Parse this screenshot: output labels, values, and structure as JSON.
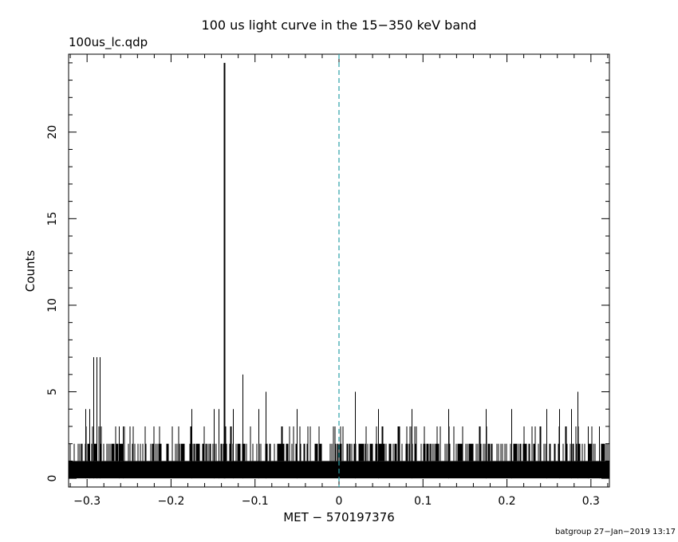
{
  "chart_data": {
    "type": "bar",
    "title": "100 us light curve in the 15−350 keV band",
    "file_label": "100us_lc.qdp",
    "xlabel": "MET − 570197376",
    "ylabel": "Counts",
    "footer": "batgroup 27−Jan−2019 13:17",
    "xlim": [
      -0.322,
      0.322
    ],
    "ylim": [
      -0.5,
      24.5
    ],
    "x_ticks": [
      -0.3,
      -0.2,
      -0.1,
      0,
      0.1,
      0.2,
      0.3
    ],
    "x_tick_labels": [
      "−0.3",
      "−0.2",
      "−0.1",
      "0",
      "0.1",
      "0.2",
      "0.3"
    ],
    "y_ticks": [
      0,
      5,
      10,
      15,
      20
    ],
    "y_tick_labels": [
      "0",
      "5",
      "10",
      "15",
      "20"
    ],
    "bin_width": 0.0001,
    "baseline_range": [
      0,
      1
    ],
    "reference_line": {
      "x": 0,
      "style": "dashed",
      "color": "#2aa0a8"
    },
    "series": [
      {
        "color": "#000000",
        "peaks": [
          {
            "x": -0.137,
            "y": 24
          },
          {
            "x": -0.115,
            "y": 6
          },
          {
            "x": -0.293,
            "y": 7
          },
          {
            "x": -0.289,
            "y": 7
          },
          {
            "x": -0.285,
            "y": 7
          },
          {
            "x": -0.302,
            "y": 4
          },
          {
            "x": -0.297,
            "y": 4
          },
          {
            "x": -0.087,
            "y": 5
          },
          {
            "x": 0.019,
            "y": 5
          },
          {
            "x": 0.284,
            "y": 5
          },
          {
            "x": -0.262,
            "y": 3
          },
          {
            "x": -0.257,
            "y": 3
          },
          {
            "x": -0.143,
            "y": 4
          },
          {
            "x": -0.149,
            "y": 4
          },
          {
            "x": -0.126,
            "y": 4
          },
          {
            "x": -0.176,
            "y": 4
          },
          {
            "x": -0.096,
            "y": 4
          },
          {
            "x": -0.05,
            "y": 4
          },
          {
            "x": 0.047,
            "y": 4
          },
          {
            "x": 0.086,
            "y": 4
          },
          {
            "x": 0.13,
            "y": 4
          },
          {
            "x": 0.175,
            "y": 4
          },
          {
            "x": 0.205,
            "y": 4
          },
          {
            "x": 0.247,
            "y": 4
          },
          {
            "x": 0.262,
            "y": 4
          },
          {
            "x": 0.276,
            "y": 4
          },
          {
            "x": 0.296,
            "y": 3
          },
          {
            "x": 0.31,
            "y": 3
          }
        ]
      }
    ]
  }
}
